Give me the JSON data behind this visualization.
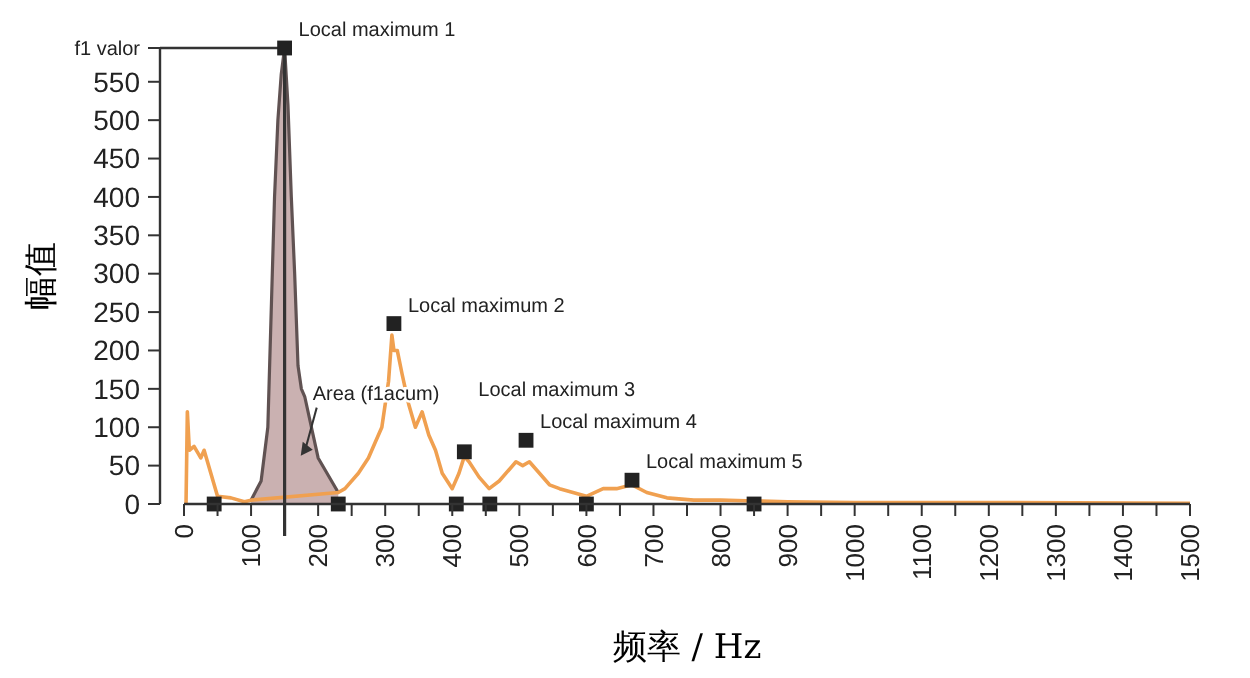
{
  "chart_data": {
    "type": "line",
    "xlabel": "频率 / Hz",
    "ylabel": "幅值",
    "xlim": [
      0,
      1500
    ],
    "ylim": [
      0,
      594
    ],
    "xticks": [
      0,
      {
        "value": 50,
        "label": null
      },
      100,
      {
        "value": 150,
        "label": null
      },
      200,
      {
        "value": 250,
        "label": null
      },
      300,
      {
        "value": 350,
        "label": null
      },
      400,
      {
        "value": 450,
        "label": null
      },
      500,
      {
        "value": 550,
        "label": null
      },
      600,
      {
        "value": 650,
        "label": null
      },
      700,
      {
        "value": 750,
        "label": null
      },
      800,
      {
        "value": 850,
        "label": null
      },
      900,
      {
        "value": 950,
        "label": null
      },
      1000,
      {
        "value": 1050,
        "label": null
      },
      1100,
      {
        "value": 1150,
        "label": null
      },
      1200,
      {
        "value": 1250,
        "label": null
      },
      1300,
      {
        "value": 1350,
        "label": null
      },
      1400,
      {
        "value": 1450,
        "label": null
      },
      1500
    ],
    "yticks": [
      0,
      50,
      100,
      150,
      200,
      250,
      300,
      350,
      400,
      450,
      500,
      550,
      {
        "value": 594,
        "label": "f1 valor"
      }
    ],
    "grid": false,
    "series": [
      {
        "type": "line",
        "color": "#f0a050",
        "x": [
          3,
          5,
          8,
          15,
          25,
          30,
          40,
          50,
          70,
          90,
          100,
          230,
          240,
          260,
          275,
          285,
          295,
          305,
          310,
          313,
          318,
          325,
          335,
          345,
          355,
          365,
          375,
          385,
          400,
          410,
          418,
          425,
          440,
          455,
          470,
          485,
          495,
          505,
          515,
          530,
          545,
          560,
          580,
          600,
          625,
          645,
          668,
          690,
          720,
          760,
          800,
          850,
          900,
          1000,
          1200,
          1500
        ],
        "values": [
          0,
          120,
          70,
          75,
          60,
          70,
          40,
          10,
          8,
          3,
          5,
          15,
          20,
          40,
          60,
          80,
          100,
          160,
          220,
          200,
          200,
          170,
          130,
          100,
          120,
          90,
          70,
          40,
          20,
          40,
          62,
          55,
          35,
          20,
          30,
          45,
          55,
          50,
          55,
          40,
          25,
          20,
          15,
          10,
          20,
          20,
          25,
          15,
          8,
          5,
          5,
          4,
          3,
          2,
          2,
          1
        ]
      },
      {
        "type": "area",
        "color": "#c4a8a8",
        "x": [
          100,
          115,
          125,
          130,
          135,
          140,
          145,
          150,
          155,
          160,
          165,
          170,
          175,
          180,
          190,
          200,
          210,
          220,
          230
        ],
        "values": [
          5,
          30,
          100,
          250,
          400,
          500,
          560,
          594,
          520,
          400,
          300,
          180,
          150,
          140,
          100,
          60,
          45,
          30,
          15
        ]
      },
      {
        "type": "scatter",
        "color": "#222222",
        "marker": "square",
        "x": [
          150,
          313,
          418,
          510,
          668,
          45,
          230,
          406,
          456,
          600,
          850
        ],
        "values": [
          594,
          235,
          68,
          83,
          31,
          0,
          0,
          0,
          0,
          0,
          0
        ]
      }
    ],
    "ref_lines": [
      {
        "axis": "x",
        "value": 150,
        "color": "#333333"
      },
      {
        "axis": "y",
        "value": 594,
        "color": "#333333"
      }
    ],
    "annotations": [
      {
        "text": "Local maximum 1",
        "x": 150,
        "y": 594
      },
      {
        "text": "Local maximum 2",
        "x": 313,
        "y": 235
      },
      {
        "text": "Local maximum 3",
        "x": 418,
        "y": 68
      },
      {
        "text": "Local maximum 4",
        "x": 510,
        "y": 83
      },
      {
        "text": "Local maximum 5",
        "x": 668,
        "y": 31
      },
      "Area (f1acum)"
    ]
  }
}
